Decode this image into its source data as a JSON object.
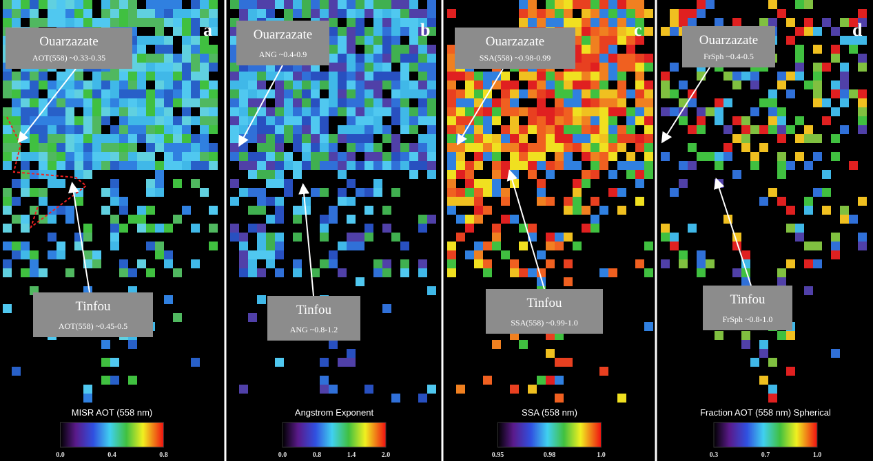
{
  "panels": [
    {
      "letter": "a",
      "ouarzazate": {
        "name": "Ouarzazate",
        "value": "AOT(558) ~0.33-0.35"
      },
      "tinfou": {
        "name": "Tinfou",
        "value": "AOT(558) ~0.45-0.5"
      },
      "colorbar": {
        "title": "MISR AOT (558 nm)",
        "ticks": [
          "0.0",
          "0.4",
          "0.8"
        ]
      }
    },
    {
      "letter": "b",
      "ouarzazate": {
        "name": "Ouarzazate",
        "value": "ANG ~0.4-0.9"
      },
      "tinfou": {
        "name": "Tinfou",
        "value": "ANG ~0.8-1.2"
      },
      "colorbar": {
        "title": "Angstrom Exponent",
        "ticks": [
          "0.0",
          "0.8",
          "1.4",
          "2.0"
        ]
      }
    },
    {
      "letter": "c",
      "ouarzazate": {
        "name": "Ouarzazate",
        "value": "SSA(558) ~0.98-0.99"
      },
      "tinfou": {
        "name": "Tinfou",
        "value": "SSA(558) ~0.99-1.0"
      },
      "colorbar": {
        "title": "SSA (558 nm)",
        "ticks": [
          "0.95",
          "0.98",
          "1.0"
        ]
      }
    },
    {
      "letter": "d",
      "ouarzazate": {
        "name": "Ouarzazate",
        "value": "FrSph ~0.4-0.5"
      },
      "tinfou": {
        "name": "Tinfou",
        "value": "FrSph ~0.8-1.0"
      },
      "colorbar": {
        "title": "Fraction AOT (558 nm) Spherical",
        "ticks": [
          "0.3",
          "0.7",
          "1.0"
        ]
      }
    }
  ]
}
